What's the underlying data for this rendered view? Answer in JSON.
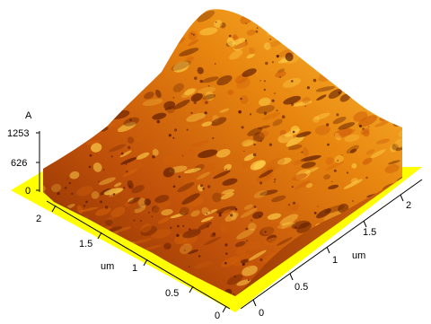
{
  "afm": {
    "z_axis": {
      "unit": "A",
      "ticks": [
        "1253",
        "626",
        "0"
      ]
    },
    "x_axis": {
      "unit": "um",
      "ticks": [
        "2",
        "1.5",
        "1",
        "0.5",
        "0"
      ]
    },
    "y_axis": {
      "unit": "um",
      "ticks": [
        "0",
        "0.5",
        "1",
        "1.5",
        "2"
      ]
    },
    "colors": {
      "base_plane": "#ffff00",
      "surface_dark": "#5a1800",
      "surface_mid": "#d0600a",
      "surface_light": "#ffd24a",
      "side_wall": "#b84a08"
    }
  }
}
